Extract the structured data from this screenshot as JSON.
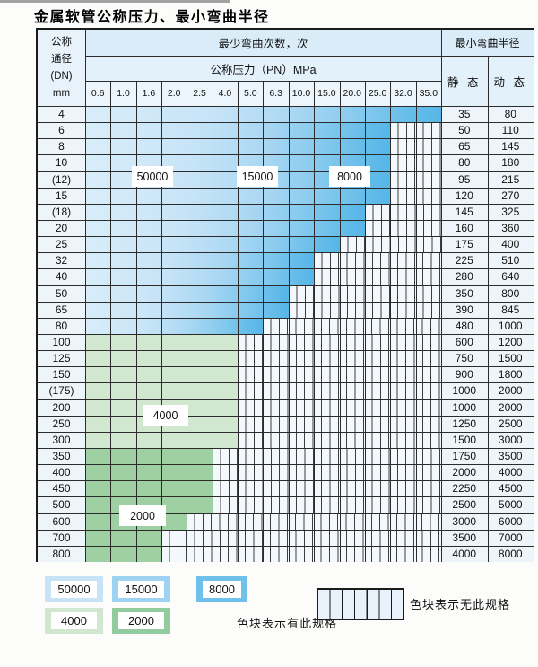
{
  "title": "金属软管公称压力、最小弯曲半径",
  "table": {
    "corner_lines": [
      "公称",
      "通径",
      "(DN)",
      "mm"
    ],
    "bend_cycles_header": "最少弯曲次数，次",
    "bend_radius_header": "最小弯曲半径",
    "pressure_header": "公称压力（PN）MPa",
    "static_header": "静 态",
    "dynamic_header": "动 态",
    "pressure_columns": [
      "0.6",
      "1.0",
      "1.6",
      "2.0",
      "2.5",
      "4.0",
      "5.0",
      "6.3",
      "10.0",
      "15.0",
      "20.0",
      "25.0",
      "32.0",
      "35.0"
    ],
    "rows": [
      {
        "dn": "4",
        "span": 14,
        "through": "35.0",
        "zone": "blue",
        "static": "35",
        "dynamic": "80"
      },
      {
        "dn": "6",
        "span": 12,
        "through": "25.0",
        "zone": "blue",
        "static": "50",
        "dynamic": "110"
      },
      {
        "dn": "8",
        "span": 12,
        "through": "25.0",
        "zone": "blue",
        "static": "65",
        "dynamic": "145"
      },
      {
        "dn": "10",
        "span": 12,
        "through": "25.0",
        "zone": "blue",
        "static": "80",
        "dynamic": "180"
      },
      {
        "dn": "(12)",
        "span": 12,
        "through": "25.0",
        "zone": "blue",
        "static": "95",
        "dynamic": "215"
      },
      {
        "dn": "15",
        "span": 12,
        "through": "25.0",
        "zone": "blue",
        "static": "120",
        "dynamic": "270"
      },
      {
        "dn": "(18)",
        "span": 11,
        "through": "20.0",
        "zone": "blue",
        "static": "145",
        "dynamic": "325"
      },
      {
        "dn": "20",
        "span": 11,
        "through": "20.0",
        "zone": "blue",
        "static": "160",
        "dynamic": "360"
      },
      {
        "dn": "25",
        "span": 10,
        "through": "15.0",
        "zone": "blue",
        "static": "175",
        "dynamic": "400"
      },
      {
        "dn": "32",
        "span": 9,
        "through": "10.0",
        "zone": "blue",
        "static": "225",
        "dynamic": "510"
      },
      {
        "dn": "40",
        "span": 9,
        "through": "10.0",
        "zone": "blue",
        "static": "280",
        "dynamic": "640"
      },
      {
        "dn": "50",
        "span": 8,
        "through": "6.3",
        "zone": "blue",
        "static": "350",
        "dynamic": "800"
      },
      {
        "dn": "65",
        "span": 8,
        "through": "6.3",
        "zone": "blue",
        "static": "390",
        "dynamic": "845"
      },
      {
        "dn": "80",
        "span": 7,
        "through": "5.0",
        "zone": "blue",
        "static": "480",
        "dynamic": "1000"
      },
      {
        "dn": "100",
        "span": 6,
        "through": "4.0",
        "zone": "green4000",
        "static": "600",
        "dynamic": "1200"
      },
      {
        "dn": "125",
        "span": 6,
        "through": "4.0",
        "zone": "green4000",
        "static": "750",
        "dynamic": "1500"
      },
      {
        "dn": "150",
        "span": 6,
        "through": "4.0",
        "zone": "green4000",
        "static": "900",
        "dynamic": "1800"
      },
      {
        "dn": "(175)",
        "span": 6,
        "through": "4.0",
        "zone": "green4000",
        "static": "1000",
        "dynamic": "2000"
      },
      {
        "dn": "200",
        "span": 6,
        "through": "4.0",
        "zone": "green4000",
        "static": "1000",
        "dynamic": "2000"
      },
      {
        "dn": "250",
        "span": 6,
        "through": "4.0",
        "zone": "green4000",
        "static": "1250",
        "dynamic": "2500"
      },
      {
        "dn": "300",
        "span": 6,
        "through": "4.0",
        "zone": "green4000",
        "static": "1500",
        "dynamic": "3000"
      },
      {
        "dn": "350",
        "span": 5,
        "through": "2.5",
        "zone": "green2000",
        "static": "1750",
        "dynamic": "3500"
      },
      {
        "dn": "400",
        "span": 5,
        "through": "2.5",
        "zone": "green2000",
        "static": "2000",
        "dynamic": "4000"
      },
      {
        "dn": "450",
        "span": 5,
        "through": "2.5",
        "zone": "green2000",
        "static": "2250",
        "dynamic": "4500"
      },
      {
        "dn": "500",
        "span": 5,
        "through": "2.5",
        "zone": "green2000",
        "static": "2500",
        "dynamic": "5000"
      },
      {
        "dn": "600",
        "span": 4,
        "through": "2.0",
        "zone": "green2000",
        "static": "3000",
        "dynamic": "6000"
      },
      {
        "dn": "700",
        "span": 3,
        "through": "1.6",
        "zone": "green2000",
        "static": "3500",
        "dynamic": "7000"
      },
      {
        "dn": "800",
        "span": 3,
        "through": "1.6",
        "zone": "green2000",
        "static": "4000",
        "dynamic": "8000"
      }
    ]
  },
  "cycle_labels": [
    {
      "text": "50000"
    },
    {
      "text": "15000"
    },
    {
      "text": "8000"
    },
    {
      "text": "4000"
    },
    {
      "text": "2000"
    }
  ],
  "legend": {
    "spec_swatches": [
      {
        "label": "50000",
        "color": "#c7e3f6"
      },
      {
        "label": "15000",
        "color": "#9ed2f1"
      },
      {
        "label": "8000",
        "color": "#6fc1eb"
      },
      {
        "label": "4000",
        "color": "#d1e7d0"
      },
      {
        "label": "2000",
        "color": "#92cb9e"
      }
    ],
    "has_spec_text": "色块表示有此规格",
    "no_spec_text": "色块表示无此规格"
  },
  "colors": {
    "blue_50000": "#c7e3f6",
    "blue_15000": "#9ed2f1",
    "blue_8000": "#6fc1eb",
    "green_4000": "#d1e7d0",
    "green_2000": "#92cb9e",
    "no_spec_fill": "#f3f8fd",
    "grid_line": "#2c2c2c"
  }
}
